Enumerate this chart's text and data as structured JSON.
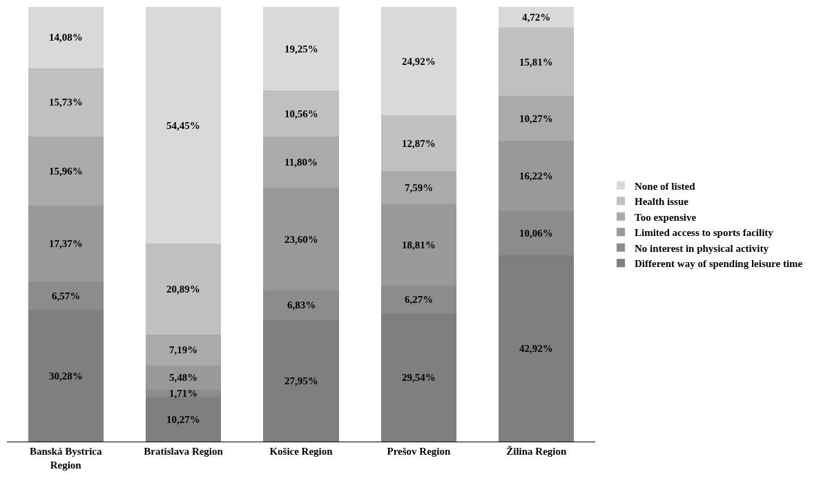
{
  "chart_data": {
    "type": "bar",
    "stacked": true,
    "categories": [
      "Banská Bystrica Region",
      "Bratislava Region",
      "Košice Region",
      "Prešov Region",
      "Žilina Region"
    ],
    "ylim": [
      0,
      100
    ],
    "tick_labels": "x",
    "legend": "right",
    "series": [
      {
        "name": "Different way of spending leisure time",
        "color": "#7f7f7f",
        "values": [
          30.28,
          10.27,
          27.95,
          29.54,
          42.92
        ],
        "value_labels": [
          "30,28%",
          "10,27%",
          "27,95%",
          "29,54%",
          "42,92%"
        ]
      },
      {
        "name": "No interest in physical activity",
        "color": "#8c8c8c",
        "values": [
          6.57,
          1.71,
          6.83,
          6.27,
          10.06
        ],
        "value_labels": [
          "6,57%",
          "1,71%",
          "6,83%",
          "6,27%",
          "10,06%"
        ]
      },
      {
        "name": "Limited access to sports facility",
        "color": "#999999",
        "values": [
          17.37,
          5.48,
          23.6,
          18.81,
          16.22
        ],
        "value_labels": [
          "17,37%",
          "5,48%",
          "23,60%",
          "18,81%",
          "16,22%"
        ]
      },
      {
        "name": "Too expensive",
        "color": "#aaaaaa",
        "values": [
          15.96,
          7.19,
          11.8,
          7.59,
          10.27
        ],
        "value_labels": [
          "15,96%",
          "7,19%",
          "11,80%",
          "7,59%",
          "10,27%"
        ]
      },
      {
        "name": "Health issue",
        "color": "#c0c0c0",
        "values": [
          15.73,
          20.89,
          10.56,
          12.87,
          15.81
        ],
        "value_labels": [
          "15,73%",
          "20,89%",
          "10,56%",
          "12,87%",
          "15,81%"
        ]
      },
      {
        "name": "None of listed",
        "color": "#d9d9d9",
        "values": [
          14.08,
          54.45,
          19.25,
          24.92,
          4.72
        ],
        "value_labels": [
          "14,08%",
          "54,45%",
          "19,25%",
          "24,92%",
          "4,72%"
        ]
      }
    ]
  }
}
